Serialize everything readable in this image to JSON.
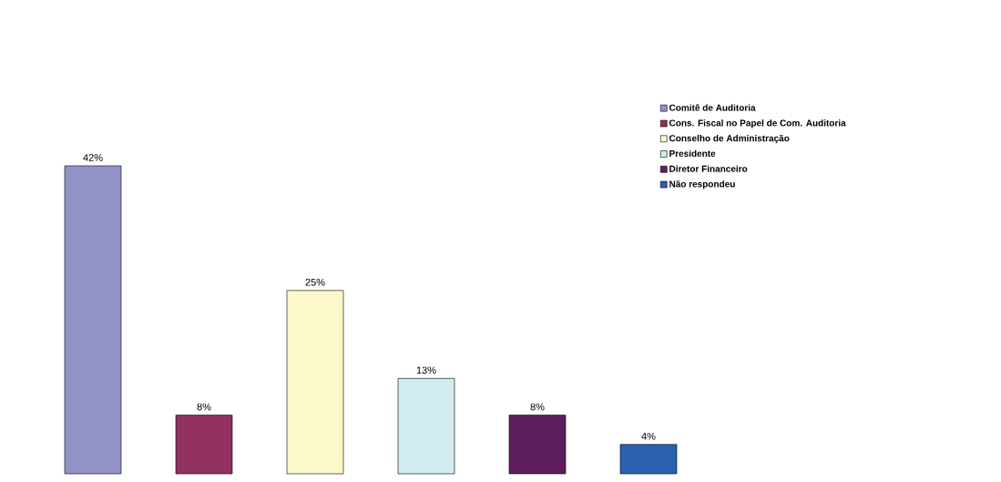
{
  "chart_data": {
    "type": "bar",
    "stacked": true,
    "legend": "top right",
    "categories": [
      null,
      null,
      null,
      null,
      null,
      null
    ],
    "series": [
      {
        "name": "Comitê de Auditoria",
        "color": "#9393c8",
        "values": [
          42,
          0,
          0,
          0,
          0,
          0
        ],
        "value_labels": [
          "42%",
          null,
          null,
          null,
          null,
          null
        ]
      },
      {
        "name": "Cons. Fiscal no Papel de Com. Auditoria",
        "color": "#90315f",
        "values": [
          0,
          8,
          0,
          0,
          0,
          0
        ],
        "value_labels": [
          null,
          "8%",
          null,
          null,
          null,
          null
        ]
      },
      {
        "name": "Conselho de Administração",
        "color": "#fbf8cc",
        "values": [
          0,
          0,
          25,
          0,
          0,
          0
        ],
        "value_labels": [
          null,
          null,
          "25%",
          null,
          null,
          null
        ]
      },
      {
        "name": "Presidente",
        "color": "#d1ecef",
        "values": [
          0,
          0,
          0,
          13,
          0,
          0
        ],
        "value_labels": [
          null,
          null,
          null,
          "13%",
          null,
          null
        ]
      },
      {
        "name": "Diretor Financeiro",
        "color": "#5e1e5e",
        "values": [
          0,
          0,
          0,
          0,
          8,
          0
        ],
        "value_labels": [
          null,
          null,
          null,
          null,
          "8%",
          null
        ]
      },
      {
        "name": "Não respondeu",
        "color": "#2a62b0",
        "values": [
          0,
          0,
          0,
          0,
          0,
          4
        ],
        "value_labels": [
          null,
          null,
          null,
          null,
          null,
          "4%"
        ]
      }
    ]
  }
}
